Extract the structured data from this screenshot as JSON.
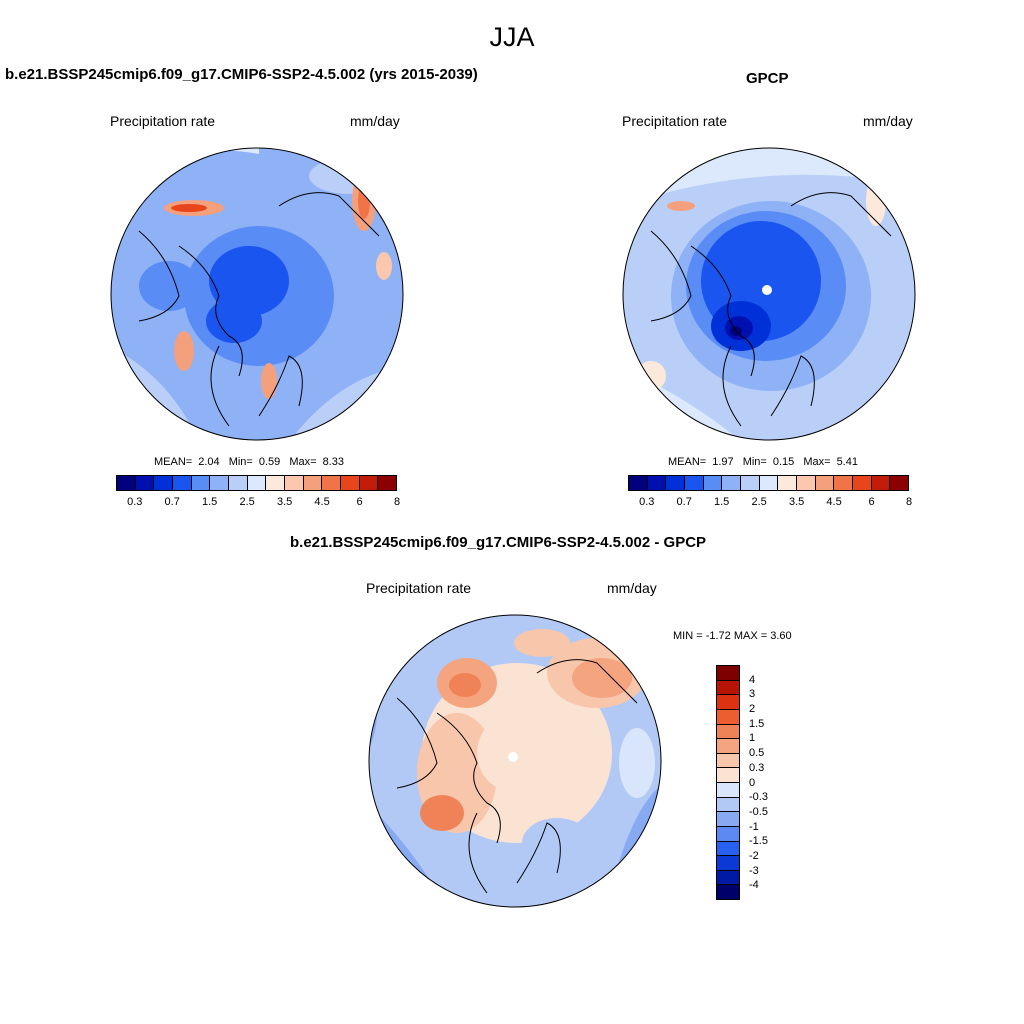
{
  "title": "JJA",
  "colors": {
    "abs_scale": [
      "#00007f",
      "#0010b0",
      "#0030d8",
      "#1a55f0",
      "#5a8cf5",
      "#8fb1f5",
      "#b9cff8",
      "#dce8fb",
      "#fde9dc",
      "#fbc8ad",
      "#f5a07c",
      "#f07448",
      "#e8451c",
      "#c21c0a",
      "#8b0000"
    ],
    "diff_scale": [
      "#00006b",
      "#001aa6",
      "#0a39d6",
      "#2860f0",
      "#5b8af2",
      "#88aaf3",
      "#b2c9f6",
      "#d8e5fa",
      "#fbe3d4",
      "#f8c6ab",
      "#f4a47e",
      "#f08257",
      "#ec5d2f",
      "#dc3212",
      "#b81405",
      "#7f0000"
    ]
  },
  "panels": {
    "model": {
      "title": "b.e21.BSSP245cmip6.f09_g17.CMIP6-SSP2-4.5.002 (yrs 2015-2039)",
      "left_label": "Precipitation rate",
      "right_label": "mm/day",
      "mean_label": "MEAN=",
      "mean": "2.04",
      "min_label": "Min=",
      "min": "0.59",
      "max_label": "Max=",
      "max": "8.33",
      "colorbar_ticks": [
        "0.3",
        "0.7",
        "1.5",
        "2.5",
        "3.5",
        "4.5",
        "6",
        "8"
      ]
    },
    "obs": {
      "title": "GPCP",
      "left_label": "Precipitation rate",
      "right_label": "mm/day",
      "mean_label": "MEAN=",
      "mean": "1.97",
      "min_label": "Min=",
      "min": "0.15",
      "max_label": "Max=",
      "max": "5.41",
      "colorbar_ticks": [
        "0.3",
        "0.7",
        "1.5",
        "2.5",
        "3.5",
        "4.5",
        "6",
        "8"
      ]
    },
    "diff": {
      "title": "b.e21.BSSP245cmip6.f09_g17.CMIP6-SSP2-4.5.002 - GPCP",
      "left_label": "Precipitation rate",
      "right_label": "mm/day",
      "minmax": "MIN =  -1.72 MAX =   3.60",
      "colorbar_ticks": [
        "4",
        "3",
        "2",
        "1.5",
        "1",
        "0.5",
        "0.3",
        "0",
        "-0.3",
        "-0.5",
        "-1",
        "-1.5",
        "-2",
        "-3",
        "-4"
      ]
    }
  }
}
